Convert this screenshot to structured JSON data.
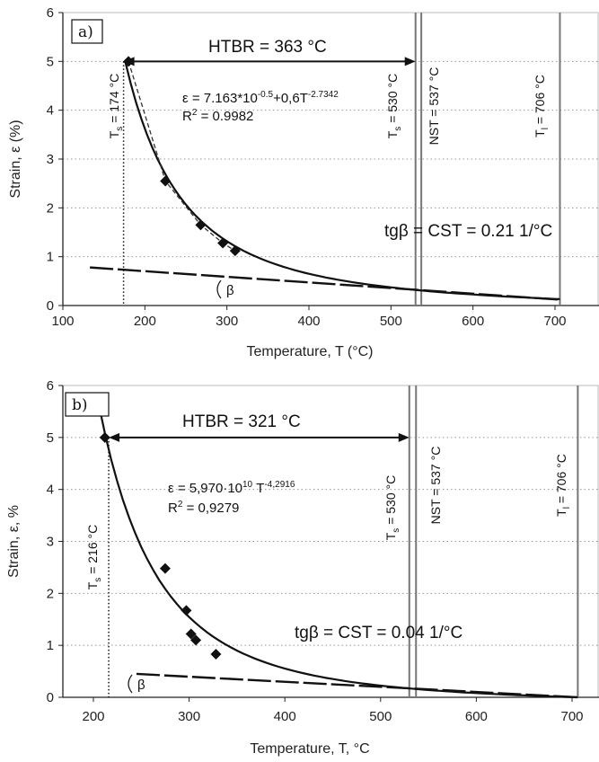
{
  "chart_data": [
    {
      "type": "scatter",
      "panel_label": "a)",
      "xlabel": "Temperature, T (°C)",
      "ylabel": "Strain, ε (%)",
      "xlim": [
        100,
        700
      ],
      "ylim": [
        0,
        6
      ],
      "xticks": [
        100,
        200,
        300,
        400,
        500,
        600,
        700
      ],
      "yticks": [
        0,
        1,
        2,
        3,
        4,
        5,
        6
      ],
      "grid": "horizontal dotted",
      "points": {
        "x": [
          180,
          225,
          268,
          295,
          310
        ],
        "y": [
          5.0,
          2.55,
          1.65,
          1.28,
          1.12
        ]
      },
      "fit": {
        "equation_main": "ε = 7.163*10",
        "equation_exp1": "-0.5",
        "equation_mid": "+0,6T",
        "equation_exp2": "-2.7342",
        "r2_label": "R",
        "r2_value": " = 0.9982",
        "r2_exp": "2"
      },
      "htbr": {
        "label": "HTBR = 363 °C",
        "from": 174,
        "to": 530,
        "y": 5.0
      },
      "vlines": [
        {
          "x": 174,
          "style": "dotted",
          "label_main": "T",
          "label_sub": "s",
          "label_rest": " = 174 °C"
        },
        {
          "x": 530,
          "style": "solid",
          "label_main": "T",
          "label_sub": "s",
          "label_rest": " = 530 °C"
        },
        {
          "x": 537,
          "style": "solid",
          "label_main": "NST = 537 °C",
          "label_sub": "",
          "label_rest": ""
        },
        {
          "x": 706,
          "style": "solid",
          "label_main": "T",
          "label_sub": "l",
          "label_rest": " = 706 °C"
        }
      ],
      "tangent": {
        "x1": 133,
        "y1": 0.78,
        "x2": 706,
        "y2": 0.12
      },
      "cst_label": "tgβ = CST = 0.21 1/°C",
      "beta_label": "β"
    },
    {
      "type": "scatter",
      "panel_label": "b)",
      "xlabel": "Temperature, T, °C",
      "ylabel": "Strain, ε, %",
      "xlim": [
        150,
        720
      ],
      "ylim": [
        0,
        6
      ],
      "xticks": [
        200,
        300,
        400,
        500,
        600,
        700
      ],
      "yticks": [
        0,
        1,
        2,
        3,
        4,
        5,
        6
      ],
      "grid": "horizontal dotted",
      "points": {
        "x": [
          212,
          275,
          297,
          302,
          307,
          328
        ],
        "y": [
          5.0,
          2.48,
          1.67,
          1.22,
          1.1,
          0.83
        ]
      },
      "fit": {
        "equation_main": "ε = 5,970·10",
        "equation_exp1": "10",
        "equation_mid": " T",
        "equation_exp2": "-4,2916",
        "r2_label": "R",
        "r2_value": " = 0,9279",
        "r2_exp": "2"
      },
      "htbr": {
        "label": "HTBR = 321 °C",
        "from": 216,
        "to": 530,
        "y": 5.0
      },
      "vlines": [
        {
          "x": 216,
          "style": "dotted",
          "label_main": "T",
          "label_sub": "s",
          "label_rest": " = 216 °C"
        },
        {
          "x": 530,
          "style": "solid",
          "label_main": "T",
          "label_sub": "s",
          "label_rest": " = 530 °C"
        },
        {
          "x": 537,
          "style": "solid",
          "label_main": "NST = 537 °C",
          "label_sub": "",
          "label_rest": ""
        },
        {
          "x": 706,
          "style": "solid",
          "label_main": "T",
          "label_sub": "l",
          "label_rest": " = 706 °C"
        }
      ],
      "tangent": {
        "x1": 245,
        "y1": 0.45,
        "x2": 706,
        "y2": 0.0
      },
      "cst_label": "tgβ = CST = 0.04 1/°C",
      "beta_label": "β"
    }
  ]
}
